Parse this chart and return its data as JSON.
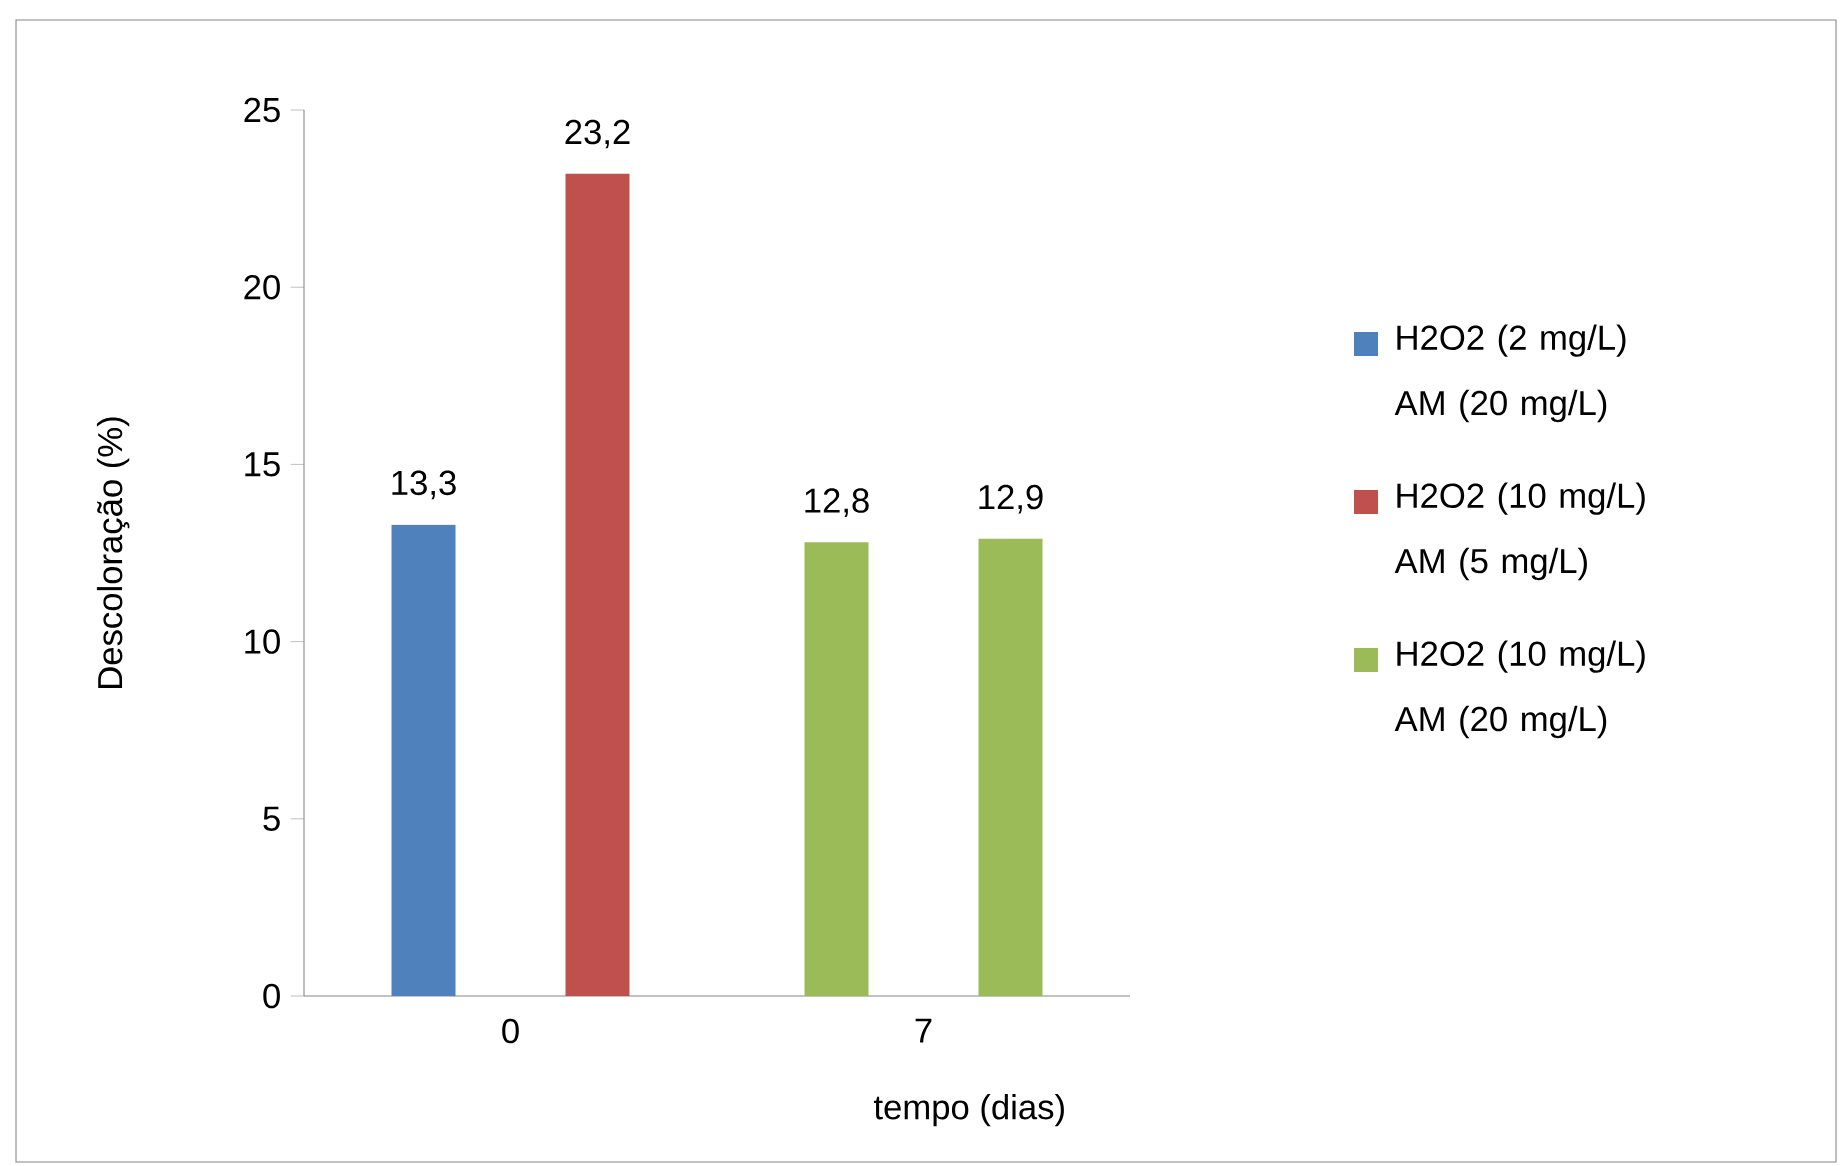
{
  "chart_data": {
    "type": "bar",
    "ylabel": "Descoloração (%)",
    "xlabel": "tempo (dias)",
    "categories": [
      "0",
      "7"
    ],
    "series": [
      {
        "name": "H2O2 (2 mg/L) AM (20 mg/L)",
        "color": "#4f81bd",
        "colors": [
          "#4f81bd",
          "#9bbb59"
        ],
        "values": [
          13.3,
          12.8
        ],
        "value_labels": [
          "13,3",
          "12,8"
        ]
      },
      {
        "name": "H2O2 (10 mg/L) AM (5 mg/L)",
        "color": "#c0504d",
        "colors": [
          "#c0504d",
          "#9bbb59"
        ],
        "values": [
          23.2,
          12.9
        ],
        "value_labels": [
          "23,2",
          "12,9"
        ]
      },
      {
        "name": "H2O2 (10 mg/L) AM (20 mg/L)",
        "color": "#9bbb59",
        "values": [
          null,
          null
        ]
      }
    ],
    "ylim": [
      0,
      25
    ],
    "yticks": [
      0,
      5,
      10,
      15,
      20,
      25
    ],
    "grid": false,
    "legend": "right"
  }
}
